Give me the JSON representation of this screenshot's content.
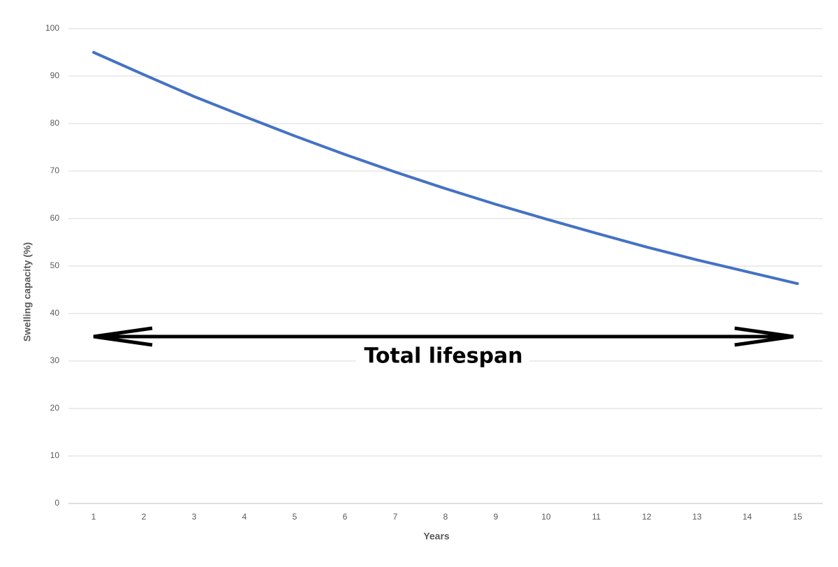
{
  "chart_data": {
    "type": "line",
    "x_label": "Years",
    "y_label": "Swelling capacity (%)",
    "annotation": "Total lifespan",
    "categories": [
      "1",
      "2",
      "3",
      "4",
      "5",
      "6",
      "7",
      "8",
      "9",
      "10",
      "11",
      "12",
      "13",
      "14",
      "15"
    ],
    "series": [
      {
        "color": "#4472c4",
        "values": [
          95.0,
          90.3,
          85.7,
          81.5,
          77.4,
          73.5,
          69.8,
          66.3,
          63.0,
          59.9,
          56.9,
          54.0,
          51.3,
          48.8,
          46.3
        ]
      }
    ],
    "ylim": [
      0,
      100
    ],
    "yticks": [
      0,
      10,
      20,
      30,
      40,
      50,
      60,
      70,
      80,
      90,
      100
    ],
    "grid": true
  }
}
